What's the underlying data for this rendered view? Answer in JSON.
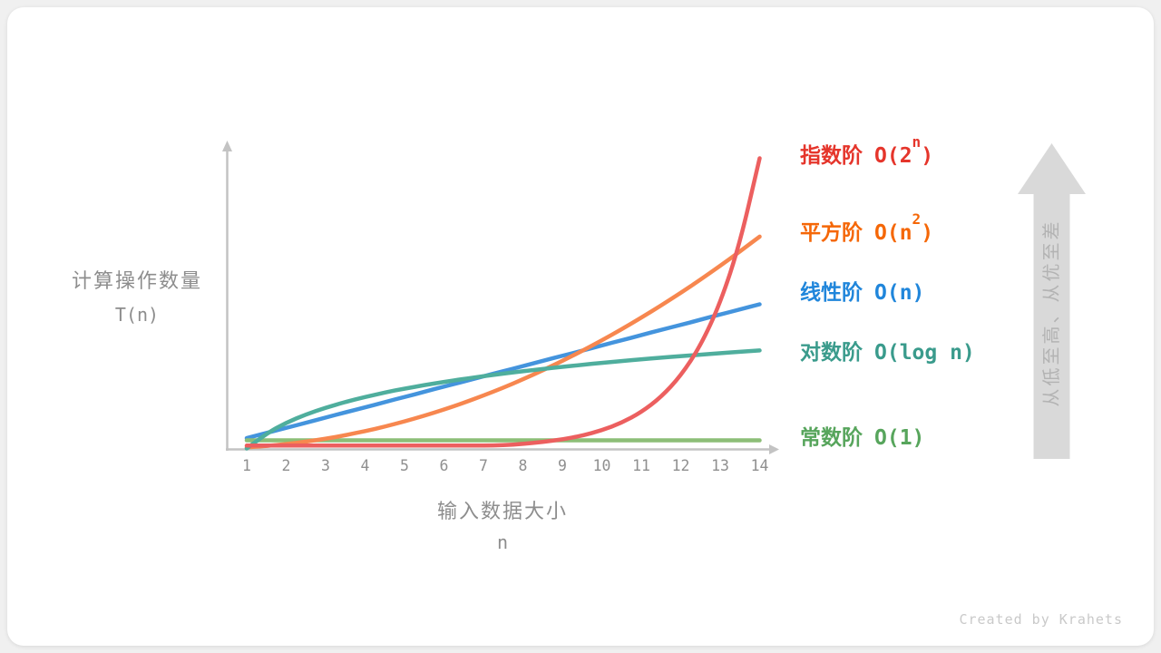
{
  "page": {
    "background": "#f0f0f0",
    "card_background": "#ffffff",
    "credit": "Created by Krahets"
  },
  "axis": {
    "color": "#c3c3c3",
    "tick_label_color": "#8f8f8f",
    "axis_label_color": "#8d8d8d"
  },
  "chart_data": {
    "type": "line",
    "title": "",
    "xlabel": "输入数据大小",
    "xlabel_sub": "n",
    "ylabel": "计算操作数量",
    "ylabel_sub": "T(n)",
    "x_range": [
      1,
      14
    ],
    "x_ticks": [
      1,
      2,
      3,
      4,
      5,
      6,
      7,
      8,
      9,
      10,
      11,
      12,
      13,
      14
    ],
    "y_axis_ticks": "none (unlabeled, arbitrary units)",
    "grid": false,
    "legend_position": "right",
    "sample_start": 1,
    "sample_step": 0.5,
    "series": [
      {
        "label": "指数阶",
        "notation_pre": "O(2",
        "notation_sup": "n",
        "notation_post": ")",
        "formula": "2^n",
        "label_color": "#e5352b",
        "curve_color": "#ec5f5f",
        "values": [
          1,
          1,
          1,
          1,
          1,
          1,
          1,
          1,
          1,
          1,
          1,
          1,
          1,
          1.1,
          1.56,
          2.21,
          3.13,
          4.42,
          6.25,
          8.84,
          12.5,
          17.68,
          25,
          35.36,
          50,
          70.71,
          100
        ]
      },
      {
        "label": "平方阶",
        "notation_pre": "O(n",
        "notation_sup": "2",
        "notation_post": ")",
        "formula": "n^2",
        "label_color": "#f56707",
        "curve_color": "#f7874f",
        "values": [
          0.37,
          0.84,
          1.49,
          2.33,
          3.35,
          4.56,
          5.96,
          7.54,
          9.31,
          11.27,
          13.41,
          15.74,
          18.25,
          20.95,
          23.84,
          26.91,
          30.17,
          33.61,
          37.25,
          41.06,
          45.07,
          49.26,
          53.63,
          58.2,
          62.94,
          67.88,
          73
        ]
      },
      {
        "label": "线性阶",
        "notation_pre": "O(n)",
        "notation_sup": "",
        "notation_post": "",
        "formula": "n",
        "label_color": "#2086db",
        "curve_color": "#4494dd",
        "values": [
          3.55,
          5.33,
          7.1,
          8.88,
          10.65,
          12.43,
          14.2,
          15.98,
          17.75,
          19.53,
          21.3,
          23.08,
          24.85,
          26.63,
          28.4,
          30.18,
          31.95,
          33.73,
          35.5,
          37.28,
          39.05,
          40.83,
          42.6,
          44.38,
          46.15,
          47.93,
          49.7
        ]
      },
      {
        "label": "对数阶",
        "notation_pre": "O(log n)",
        "notation_sup": "",
        "notation_post": "",
        "formula": "log n",
        "label_color": "#3a9b8c",
        "curve_color": "#4fae9d",
        "values": [
          0,
          5.19,
          8.88,
          11.74,
          14.07,
          16.04,
          17.76,
          19.27,
          20.61,
          21.83,
          22.95,
          23.97,
          24.92,
          25.81,
          26.63,
          27.41,
          28.14,
          28.83,
          29.49,
          30.11,
          30.71,
          31.28,
          31.82,
          32.34,
          32.84,
          33.33,
          33.79
        ]
      },
      {
        "label": "常数阶",
        "notation_pre": "O(1)",
        "notation_sup": "",
        "notation_post": "",
        "formula": "1",
        "label_color": "#57a55c",
        "curve_color": "#8cbe77",
        "values": [
          2.8,
          2.8,
          2.8,
          2.8,
          2.8,
          2.8,
          2.8,
          2.8,
          2.8,
          2.8,
          2.8,
          2.8,
          2.8,
          2.8,
          2.8,
          2.8,
          2.8,
          2.8,
          2.8,
          2.8,
          2.8,
          2.8,
          2.8,
          2.8,
          2.8,
          2.8,
          2.8
        ]
      }
    ],
    "annotation_arrow": {
      "text": "从低至高、从优至差",
      "direction": "up",
      "fill": "#d9d9d9",
      "text_color": "#b3b3b3"
    }
  }
}
